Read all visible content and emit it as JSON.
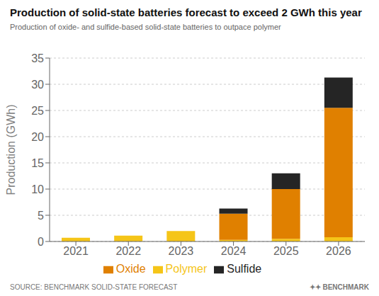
{
  "chart_data": {
    "type": "bar",
    "stacked": true,
    "title": "Production of solid-state batteries forecast to exceed 2 GWh this year",
    "subtitle": "Production of oxide- and sulfide-based solid-state batteries to outpace polymer",
    "ylabel": "Production (GWh)",
    "categories": [
      "2021",
      "2022",
      "2023",
      "2024",
      "2025",
      "2026"
    ],
    "series": [
      {
        "name": "Polymer",
        "color": "#F5C518",
        "values": [
          0.7,
          1.1,
          2.0,
          0.3,
          0.5,
          0.8
        ]
      },
      {
        "name": "Oxide",
        "color": "#E08000",
        "values": [
          0.0,
          0.0,
          0.0,
          5.0,
          9.5,
          24.7
        ]
      },
      {
        "name": "Sulfide",
        "color": "#252525",
        "values": [
          0.0,
          0.0,
          0.0,
          1.0,
          3.0,
          5.8
        ]
      }
    ],
    "ylim": [
      0,
      35
    ],
    "yticks": [
      0,
      5,
      10,
      15,
      20,
      25,
      30,
      35
    ],
    "grid": true,
    "legend": "bottom",
    "annotations": [
      "SOURCE: BENCHMARK SOLID-STATE FORECAST",
      "✦✦ BENCHMARK"
    ]
  }
}
